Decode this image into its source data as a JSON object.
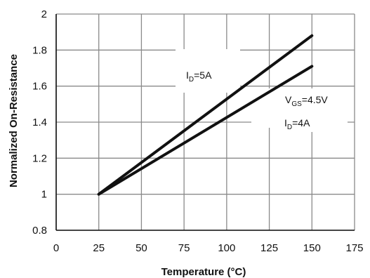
{
  "chart_data": {
    "type": "line",
    "title": "",
    "xlabel": "Temperature (°C)",
    "ylabel": "Normalized On-Resistance",
    "xlim": [
      0,
      175
    ],
    "ylim": [
      0.8,
      2.0
    ],
    "x_ticks": [
      "0",
      "25",
      "50",
      "75",
      "100",
      "125",
      "150",
      "175"
    ],
    "y_ticks": [
      "0.8",
      "1",
      "1.2",
      "1.4",
      "1.6",
      "1.8",
      "2"
    ],
    "grid": true,
    "series": [
      {
        "name": "ID=5A",
        "x": [
          25,
          150
        ],
        "y": [
          1.0,
          1.88
        ]
      },
      {
        "name": "ID=4A",
        "x": [
          25,
          150
        ],
        "y": [
          1.0,
          1.71
        ]
      }
    ],
    "annotations": {
      "id5": {
        "main": "I",
        "sub": "D",
        "rest": "=5A"
      },
      "vgs": {
        "main": "V",
        "sub": "GS",
        "rest": "=4.5V"
      },
      "id4": {
        "main": "I",
        "sub": "D",
        "rest": "=4A"
      }
    },
    "colors": {
      "line": "#111111",
      "grid": "#8a8a8a",
      "background": "#ffffff"
    }
  }
}
